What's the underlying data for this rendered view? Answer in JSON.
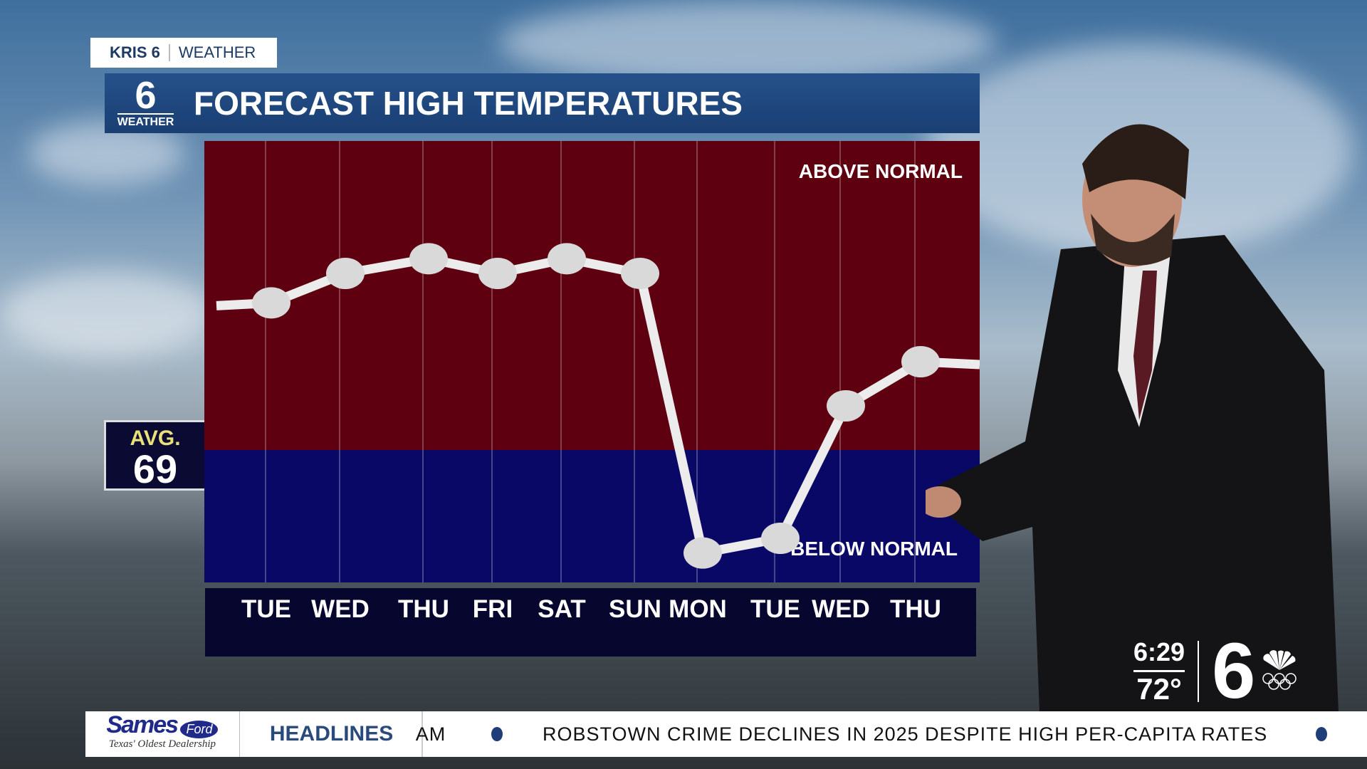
{
  "tag": {
    "station": "KRIS 6",
    "section": "WEATHER"
  },
  "header": {
    "logo_number": "6",
    "logo_label": "WEATHER",
    "title": "FORECAST HIGH TEMPERATURES"
  },
  "avg": {
    "label": "AVG.",
    "value": "69"
  },
  "chart_data": {
    "type": "line",
    "title": "FORECAST HIGH TEMPERATURES",
    "categories": [
      "TUE",
      "WED",
      "THU",
      "FRI",
      "SAT",
      "SUN",
      "MON",
      "TUE",
      "WED",
      "THU"
    ],
    "values": [
      79,
      81,
      82,
      81,
      82,
      81,
      62,
      63,
      72,
      75
    ],
    "baseline": 69,
    "ylim": [
      60,
      90
    ],
    "annotations": {
      "above": "ABOVE NORMAL",
      "below": "BELOW NORMAL"
    },
    "colors": {
      "above": "#5e000f",
      "below": "#0a0866",
      "line": "#ececec"
    }
  },
  "bug": {
    "time": "6:29",
    "temp": "72°",
    "channel": "6"
  },
  "ticker": {
    "sponsor": "Sames",
    "sponsor_badge": "Ford",
    "sponsor_tagline": "Texas' Oldest Dealership",
    "label": "HEADLINES",
    "prev": "AM",
    "headline": "ROBSTOWN CRIME DECLINES IN 2025 DESPITE HIGH PER-CAPITA RATES"
  }
}
